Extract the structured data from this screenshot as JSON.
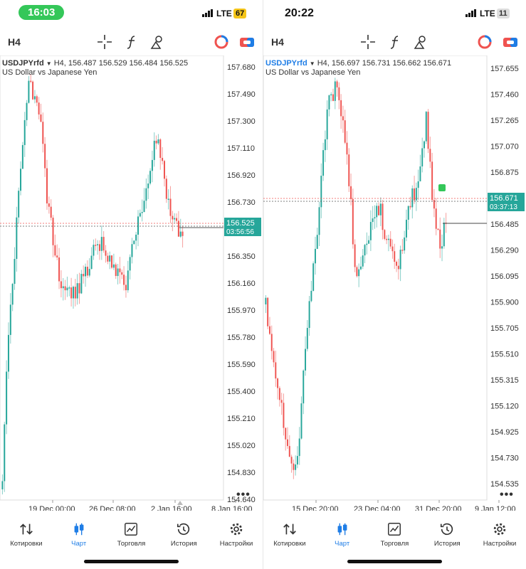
{
  "screens": [
    {
      "status": {
        "time": "16:03",
        "carrier": "LTE",
        "battery": "67"
      },
      "toolbar": {
        "timeframe": "H4"
      },
      "header": {
        "symbol": "USDJPYrfd",
        "info": "H4, 156.487 156.529 156.484 156.525",
        "description": "US Dollar vs Japanese Yen"
      },
      "price_badge": {
        "price": "156.525",
        "countdown": "03:56:56"
      },
      "y_labels": [
        "157.680",
        "157.490",
        "157.300",
        "157.110",
        "156.920",
        "156.730",
        "156.350",
        "156.160",
        "155.970",
        "155.780",
        "155.590",
        "155.400",
        "155.210",
        "155.020",
        "154.830",
        "154.640"
      ],
      "x_labels": [
        "19 Dec 00:00",
        "26 Dec 08:00",
        "2 Jan 16:00",
        "8 Jan 16:00"
      ],
      "more": "•••"
    },
    {
      "status": {
        "time": "20:22",
        "carrier": "LTE",
        "battery": "11"
      },
      "toolbar": {
        "timeframe": "H4"
      },
      "header": {
        "symbol": "USDJPYrfd",
        "info": "H4, 156.697 156.731 156.662 156.671",
        "description": "US Dollar vs Japanese Yen"
      },
      "price_badge": {
        "price": "156.671",
        "countdown": "03:37:13"
      },
      "y_labels": [
        "157.655",
        "157.460",
        "157.265",
        "157.070",
        "156.875",
        "156.485",
        "156.290",
        "156.095",
        "155.900",
        "155.705",
        "155.510",
        "155.315",
        "155.120",
        "154.925",
        "154.730",
        "154.535"
      ],
      "x_labels": [
        "15 Dec 20:00",
        "23 Dec 04:00",
        "31 Dec 20:00",
        "9 Jan 12:00"
      ],
      "more": "•••"
    }
  ],
  "nav": {
    "items": [
      {
        "id": "quotes",
        "label": "Котировки",
        "icon": "arrows-updown-icon"
      },
      {
        "id": "chart",
        "label": "Чарт",
        "icon": "candles-icon"
      },
      {
        "id": "trade",
        "label": "Торговля",
        "icon": "trend-icon"
      },
      {
        "id": "history",
        "label": "История",
        "icon": "history-icon"
      },
      {
        "id": "settings",
        "label": "Настройки",
        "icon": "gear-icon"
      }
    ]
  },
  "colors": {
    "bull": "#26a69a",
    "bear": "#ef5350",
    "accent": "#1e7de6",
    "badge": "#26a69a"
  }
}
